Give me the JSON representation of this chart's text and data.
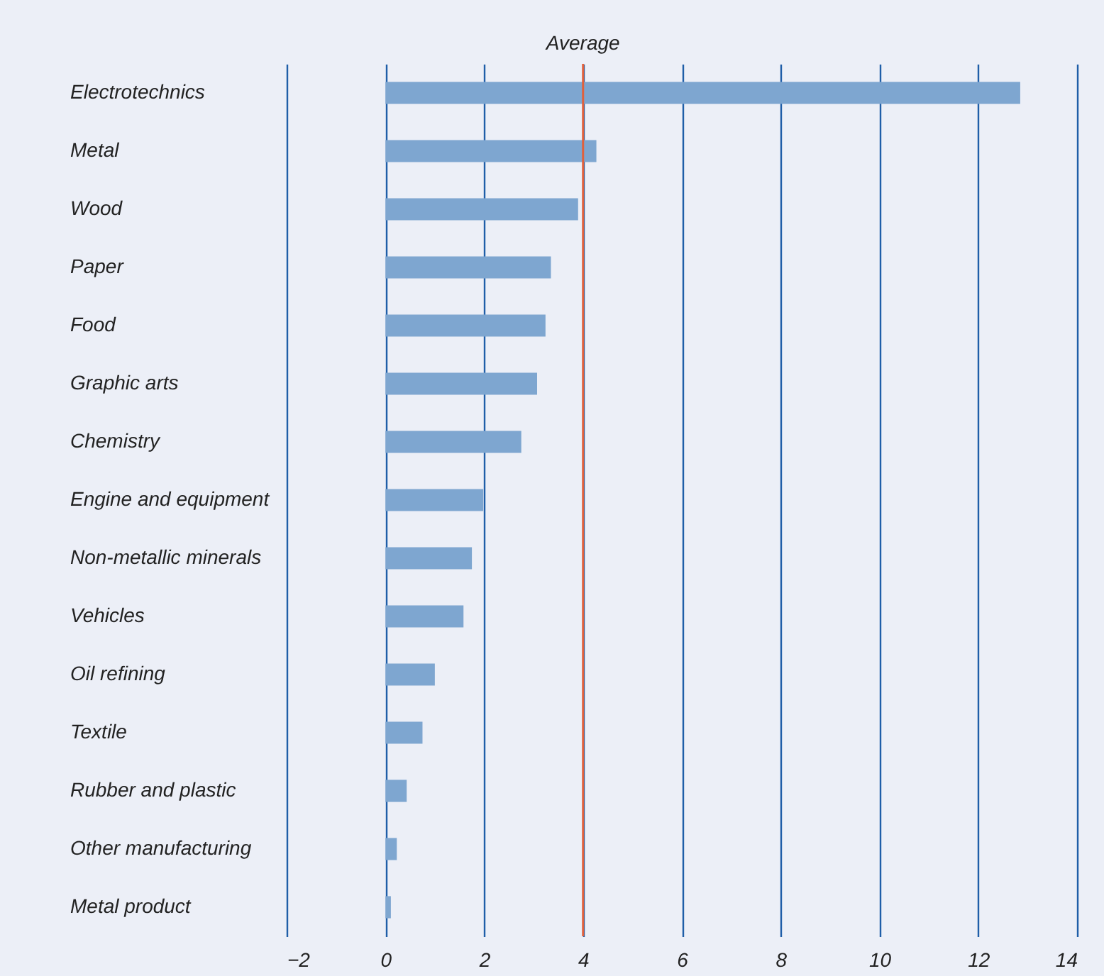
{
  "chart_data": {
    "type": "bar",
    "orientation": "horizontal",
    "categories": [
      "Electrotechnics",
      "Metal",
      "Wood",
      "Paper",
      "Food",
      "Graphic arts",
      "Chemistry",
      "Engine and equipment",
      "Non-metallic minerals",
      "Vehicles",
      "Oil refining",
      "Textile",
      "Rubber and plastic",
      "Other manufacturing",
      "Metal product"
    ],
    "values": [
      12.85,
      4.27,
      3.9,
      3.35,
      3.24,
      3.07,
      2.75,
      1.98,
      1.75,
      1.58,
      1.0,
      0.75,
      0.43,
      0.23,
      0.11
    ],
    "color": "#7ea6d0",
    "xlim": [
      -2,
      14
    ],
    "xticks": [
      -2,
      0,
      2,
      4,
      6,
      8,
      10,
      12,
      14
    ],
    "grid": "x",
    "ref_lines": [
      {
        "axis": "x",
        "value": 4,
        "label": "Average",
        "color": "#e0603c"
      }
    ]
  }
}
